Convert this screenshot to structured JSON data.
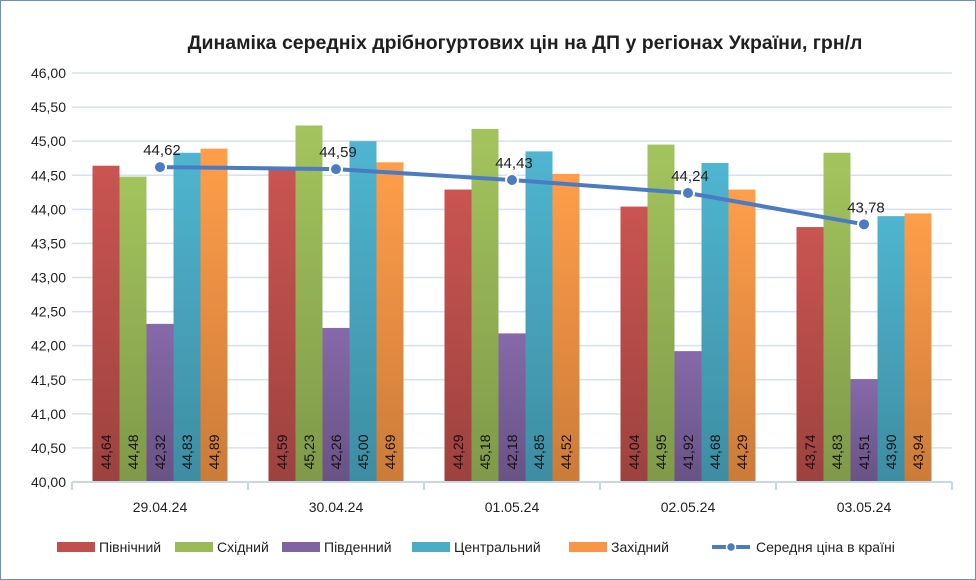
{
  "chart_data": {
    "type": "bar",
    "title": "Динаміка середніх дрібногуртових цін на ДП у регіонах України, грн/л",
    "xlabel": "",
    "ylabel": "",
    "ylim": [
      40,
      46
    ],
    "yticks": [
      "40,00",
      "40,50",
      "41,00",
      "41,50",
      "42,00",
      "42,50",
      "43,00",
      "43,50",
      "44,00",
      "44,50",
      "45,00",
      "45,50",
      "46,00"
    ],
    "grid": true,
    "legend_position": "bottom",
    "categories": [
      "29.04.24",
      "30.04.24",
      "01.05.24",
      "02.05.24",
      "03.05.24"
    ],
    "series": [
      {
        "name": "Північний",
        "type": "bar",
        "color": "#c0504d",
        "values": [
          44.64,
          44.59,
          44.29,
          44.04,
          43.74
        ],
        "labels": [
          "44,64",
          "44,59",
          "44,29",
          "44,04",
          "43,74"
        ]
      },
      {
        "name": "Східний",
        "type": "bar",
        "color": "#9bbb59",
        "values": [
          44.48,
          45.23,
          45.18,
          44.95,
          44.83
        ],
        "labels": [
          "44,48",
          "45,23",
          "45,18",
          "44,95",
          "44,83"
        ]
      },
      {
        "name": "Південний",
        "type": "bar",
        "color": "#8064a2",
        "values": [
          42.32,
          42.26,
          42.18,
          41.92,
          41.51
        ],
        "labels": [
          "42,32",
          "42,26",
          "42,18",
          "41,92",
          "41,51"
        ]
      },
      {
        "name": "Центральний",
        "type": "bar",
        "color": "#4bacc6",
        "values": [
          44.83,
          45.0,
          44.85,
          44.68,
          43.9
        ],
        "labels": [
          "44,83",
          "45,00",
          "44,85",
          "44,68",
          "43,90"
        ]
      },
      {
        "name": "Західний",
        "type": "bar",
        "color": "#f79646",
        "values": [
          44.89,
          44.69,
          44.52,
          44.29,
          43.94
        ],
        "labels": [
          "44,89",
          "44,69",
          "44,52",
          "44,29",
          "43,94"
        ]
      },
      {
        "name": "Середня ціна в країні",
        "type": "line",
        "color": "#4a7bc4",
        "values": [
          44.62,
          44.59,
          44.43,
          44.24,
          43.78
        ],
        "labels": [
          "44,62",
          "44,59",
          "44,43",
          "44,24",
          "43,78"
        ]
      }
    ]
  }
}
